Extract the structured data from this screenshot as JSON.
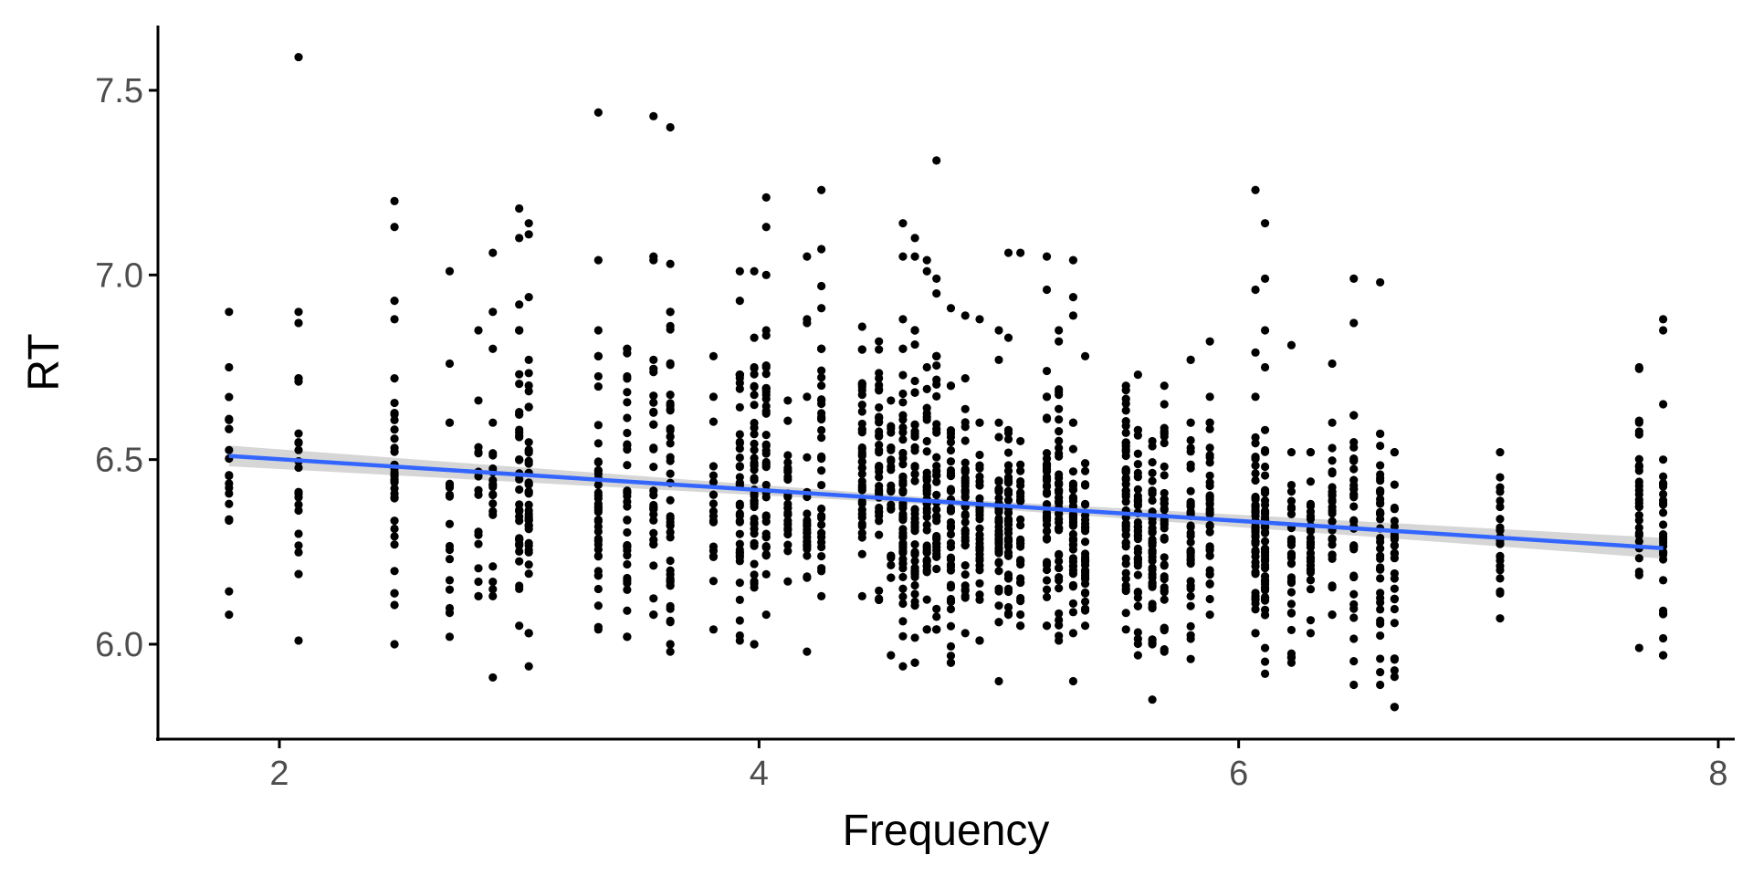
{
  "chart_data": {
    "type": "scatter",
    "title": "",
    "xlabel": "Frequency",
    "ylabel": "RT",
    "xlim": [
      1.5,
      8.05
    ],
    "ylim": [
      5.8,
      7.65
    ],
    "x_ticks": [
      2,
      4,
      6,
      8
    ],
    "y_ticks": [
      6.0,
      6.5,
      7.0,
      7.5
    ],
    "x_tick_labels": [
      "2",
      "4",
      "6",
      "8"
    ],
    "y_tick_labels": [
      "6.0",
      "6.5",
      "7.0",
      "7.5"
    ],
    "grid": false,
    "legend": "none",
    "colors": {
      "points": "#000000",
      "trend_line": "#3366ff",
      "confidence_band": "#c8c8c8",
      "axis": "#000000",
      "tick_label": "#4d4d4d"
    },
    "trend": {
      "method": "linear",
      "x": [
        1.79,
        7.77
      ],
      "y": [
        6.51,
        6.26
      ],
      "ci_halfwidth": [
        0.028,
        0.009,
        0.028
      ]
    },
    "columns": [
      {
        "x": 1.79,
        "ymin": 6.08,
        "ymax": 6.75,
        "n": 18,
        "outliers": [
          6.9,
          6.61,
          6.38
        ]
      },
      {
        "x": 2.08,
        "ymin": 6.19,
        "ymax": 6.72,
        "n": 18,
        "outliers": [
          7.59,
          6.9,
          6.87,
          6.01
        ]
      },
      {
        "x": 2.48,
        "ymin": 6.0,
        "ymax": 6.72,
        "n": 32,
        "outliers": [
          7.2,
          7.13,
          6.93,
          6.88
        ]
      },
      {
        "x": 2.71,
        "ymin": 6.02,
        "ymax": 6.6,
        "n": 16,
        "outliers": [
          7.01,
          6.76
        ]
      },
      {
        "x": 2.83,
        "ymin": 6.13,
        "ymax": 6.66,
        "n": 16,
        "outliers": [
          6.85
        ]
      },
      {
        "x": 2.89,
        "ymin": 6.13,
        "ymax": 6.6,
        "n": 18,
        "outliers": [
          7.06,
          6.9,
          6.8,
          5.91
        ]
      },
      {
        "x": 3.0,
        "ymin": 6.05,
        "ymax": 6.85,
        "n": 36,
        "outliers": [
          7.18,
          7.1,
          6.92
        ]
      },
      {
        "x": 3.04,
        "ymin": 6.03,
        "ymax": 6.94,
        "n": 40,
        "outliers": [
          7.14,
          7.11,
          5.94
        ]
      },
      {
        "x": 3.33,
        "ymin": 6.04,
        "ymax": 6.78,
        "n": 40,
        "outliers": [
          7.44,
          7.04,
          6.85
        ]
      },
      {
        "x": 3.45,
        "ymin": 6.02,
        "ymax": 6.8,
        "n": 36,
        "outliers": []
      },
      {
        "x": 3.56,
        "ymin": 6.08,
        "ymax": 6.77,
        "n": 28,
        "outliers": [
          7.43,
          7.05,
          7.04
        ]
      },
      {
        "x": 3.63,
        "ymin": 6.0,
        "ymax": 6.9,
        "n": 42,
        "outliers": [
          7.4,
          7.03,
          5.98
        ]
      },
      {
        "x": 3.81,
        "ymin": 6.04,
        "ymax": 6.67,
        "n": 18,
        "outliers": [
          6.78
        ]
      },
      {
        "x": 3.92,
        "ymin": 6.01,
        "ymax": 6.73,
        "n": 38,
        "outliers": [
          7.01,
          6.93
        ]
      },
      {
        "x": 3.98,
        "ymin": 6.0,
        "ymax": 6.75,
        "n": 44,
        "outliers": [
          7.01,
          6.83
        ]
      },
      {
        "x": 4.03,
        "ymin": 6.08,
        "ymax": 6.85,
        "n": 40,
        "outliers": [
          7.21,
          7.13,
          7.0
        ]
      },
      {
        "x": 4.12,
        "ymin": 6.17,
        "ymax": 6.66,
        "n": 26,
        "outliers": []
      },
      {
        "x": 4.2,
        "ymin": 6.18,
        "ymax": 6.67,
        "n": 22,
        "outliers": [
          7.05,
          6.88,
          6.87,
          5.98
        ]
      },
      {
        "x": 4.26,
        "ymin": 6.13,
        "ymax": 6.8,
        "n": 32,
        "outliers": [
          7.23,
          7.07,
          6.97,
          6.91
        ]
      },
      {
        "x": 4.43,
        "ymin": 6.13,
        "ymax": 6.86,
        "n": 40,
        "outliers": []
      },
      {
        "x": 4.5,
        "ymin": 6.12,
        "ymax": 6.82,
        "n": 40,
        "outliers": []
      },
      {
        "x": 4.55,
        "ymin": 6.18,
        "ymax": 6.66,
        "n": 24,
        "outliers": [
          5.97
        ]
      },
      {
        "x": 4.6,
        "ymin": 5.94,
        "ymax": 6.8,
        "n": 54,
        "outliers": [
          7.14,
          7.05,
          6.88
        ]
      },
      {
        "x": 4.65,
        "ymin": 5.95,
        "ymax": 6.85,
        "n": 50,
        "outliers": [
          7.1,
          7.05
        ]
      },
      {
        "x": 4.7,
        "ymin": 6.04,
        "ymax": 6.75,
        "n": 46,
        "outliers": [
          7.04,
          7.01
        ]
      },
      {
        "x": 4.74,
        "ymin": 6.04,
        "ymax": 6.78,
        "n": 40,
        "outliers": [
          7.31,
          6.99,
          6.95
        ]
      },
      {
        "x": 4.8,
        "ymin": 5.95,
        "ymax": 6.7,
        "n": 44,
        "outliers": [
          6.91
        ]
      },
      {
        "x": 4.86,
        "ymin": 6.03,
        "ymax": 6.72,
        "n": 40,
        "outliers": [
          6.89
        ]
      },
      {
        "x": 4.92,
        "ymin": 6.01,
        "ymax": 6.6,
        "n": 34,
        "outliers": [
          6.88
        ]
      },
      {
        "x": 5.0,
        "ymin": 6.06,
        "ymax": 6.6,
        "n": 44,
        "outliers": [
          6.85,
          6.77,
          5.9
        ]
      },
      {
        "x": 5.04,
        "ymin": 6.08,
        "ymax": 6.58,
        "n": 36,
        "outliers": [
          7.06,
          6.83
        ]
      },
      {
        "x": 5.09,
        "ymin": 6.05,
        "ymax": 6.55,
        "n": 30,
        "outliers": [
          7.06
        ]
      },
      {
        "x": 5.2,
        "ymin": 6.05,
        "ymax": 6.67,
        "n": 40,
        "outliers": [
          7.05,
          6.96,
          6.74
        ]
      },
      {
        "x": 5.25,
        "ymin": 6.01,
        "ymax": 6.69,
        "n": 44,
        "outliers": [
          6.85,
          6.82
        ]
      },
      {
        "x": 5.31,
        "ymin": 6.03,
        "ymax": 6.6,
        "n": 44,
        "outliers": [
          7.04,
          6.94,
          6.89,
          5.9
        ]
      },
      {
        "x": 5.36,
        "ymin": 6.05,
        "ymax": 6.49,
        "n": 34,
        "outliers": [
          6.78
        ]
      },
      {
        "x": 5.53,
        "ymin": 6.04,
        "ymax": 6.7,
        "n": 50,
        "outliers": []
      },
      {
        "x": 5.58,
        "ymin": 5.97,
        "ymax": 6.58,
        "n": 44,
        "outliers": [
          6.73
        ]
      },
      {
        "x": 5.64,
        "ymin": 6.0,
        "ymax": 6.55,
        "n": 44,
        "outliers": [
          5.85
        ]
      },
      {
        "x": 5.69,
        "ymin": 5.98,
        "ymax": 6.65,
        "n": 40,
        "outliers": [
          6.7
        ]
      },
      {
        "x": 5.8,
        "ymin": 5.96,
        "ymax": 6.6,
        "n": 40,
        "outliers": [
          6.77,
          6.77
        ]
      },
      {
        "x": 5.88,
        "ymin": 6.08,
        "ymax": 6.6,
        "n": 36,
        "outliers": [
          6.82,
          6.67
        ]
      },
      {
        "x": 6.07,
        "ymin": 6.03,
        "ymax": 6.56,
        "n": 48,
        "outliers": [
          7.23,
          6.96,
          6.79,
          6.67
        ]
      },
      {
        "x": 6.11,
        "ymin": 5.92,
        "ymax": 6.58,
        "n": 50,
        "outliers": [
          7.14,
          6.99,
          6.85,
          6.75
        ]
      },
      {
        "x": 6.22,
        "ymin": 5.95,
        "ymax": 6.52,
        "n": 30,
        "outliers": [
          6.81
        ]
      },
      {
        "x": 6.3,
        "ymin": 6.03,
        "ymax": 6.52,
        "n": 30,
        "outliers": []
      },
      {
        "x": 6.39,
        "ymin": 6.08,
        "ymax": 6.6,
        "n": 30,
        "outliers": [
          6.76
        ]
      },
      {
        "x": 6.48,
        "ymin": 5.89,
        "ymax": 6.62,
        "n": 34,
        "outliers": [
          6.99,
          6.87
        ]
      },
      {
        "x": 6.59,
        "ymin": 5.89,
        "ymax": 6.57,
        "n": 40,
        "outliers": [
          6.98
        ]
      },
      {
        "x": 6.65,
        "ymin": 5.83,
        "ymax": 6.52,
        "n": 28,
        "outliers": [
          6.52
        ]
      },
      {
        "x": 7.09,
        "ymin": 6.07,
        "ymax": 6.52,
        "n": 24,
        "outliers": []
      },
      {
        "x": 7.67,
        "ymin": 5.99,
        "ymax": 6.75,
        "n": 28,
        "outliers": [
          6.6
        ]
      },
      {
        "x": 7.77,
        "ymin": 5.97,
        "ymax": 6.5,
        "n": 30,
        "outliers": [
          6.88,
          6.85,
          6.65
        ]
      }
    ]
  }
}
